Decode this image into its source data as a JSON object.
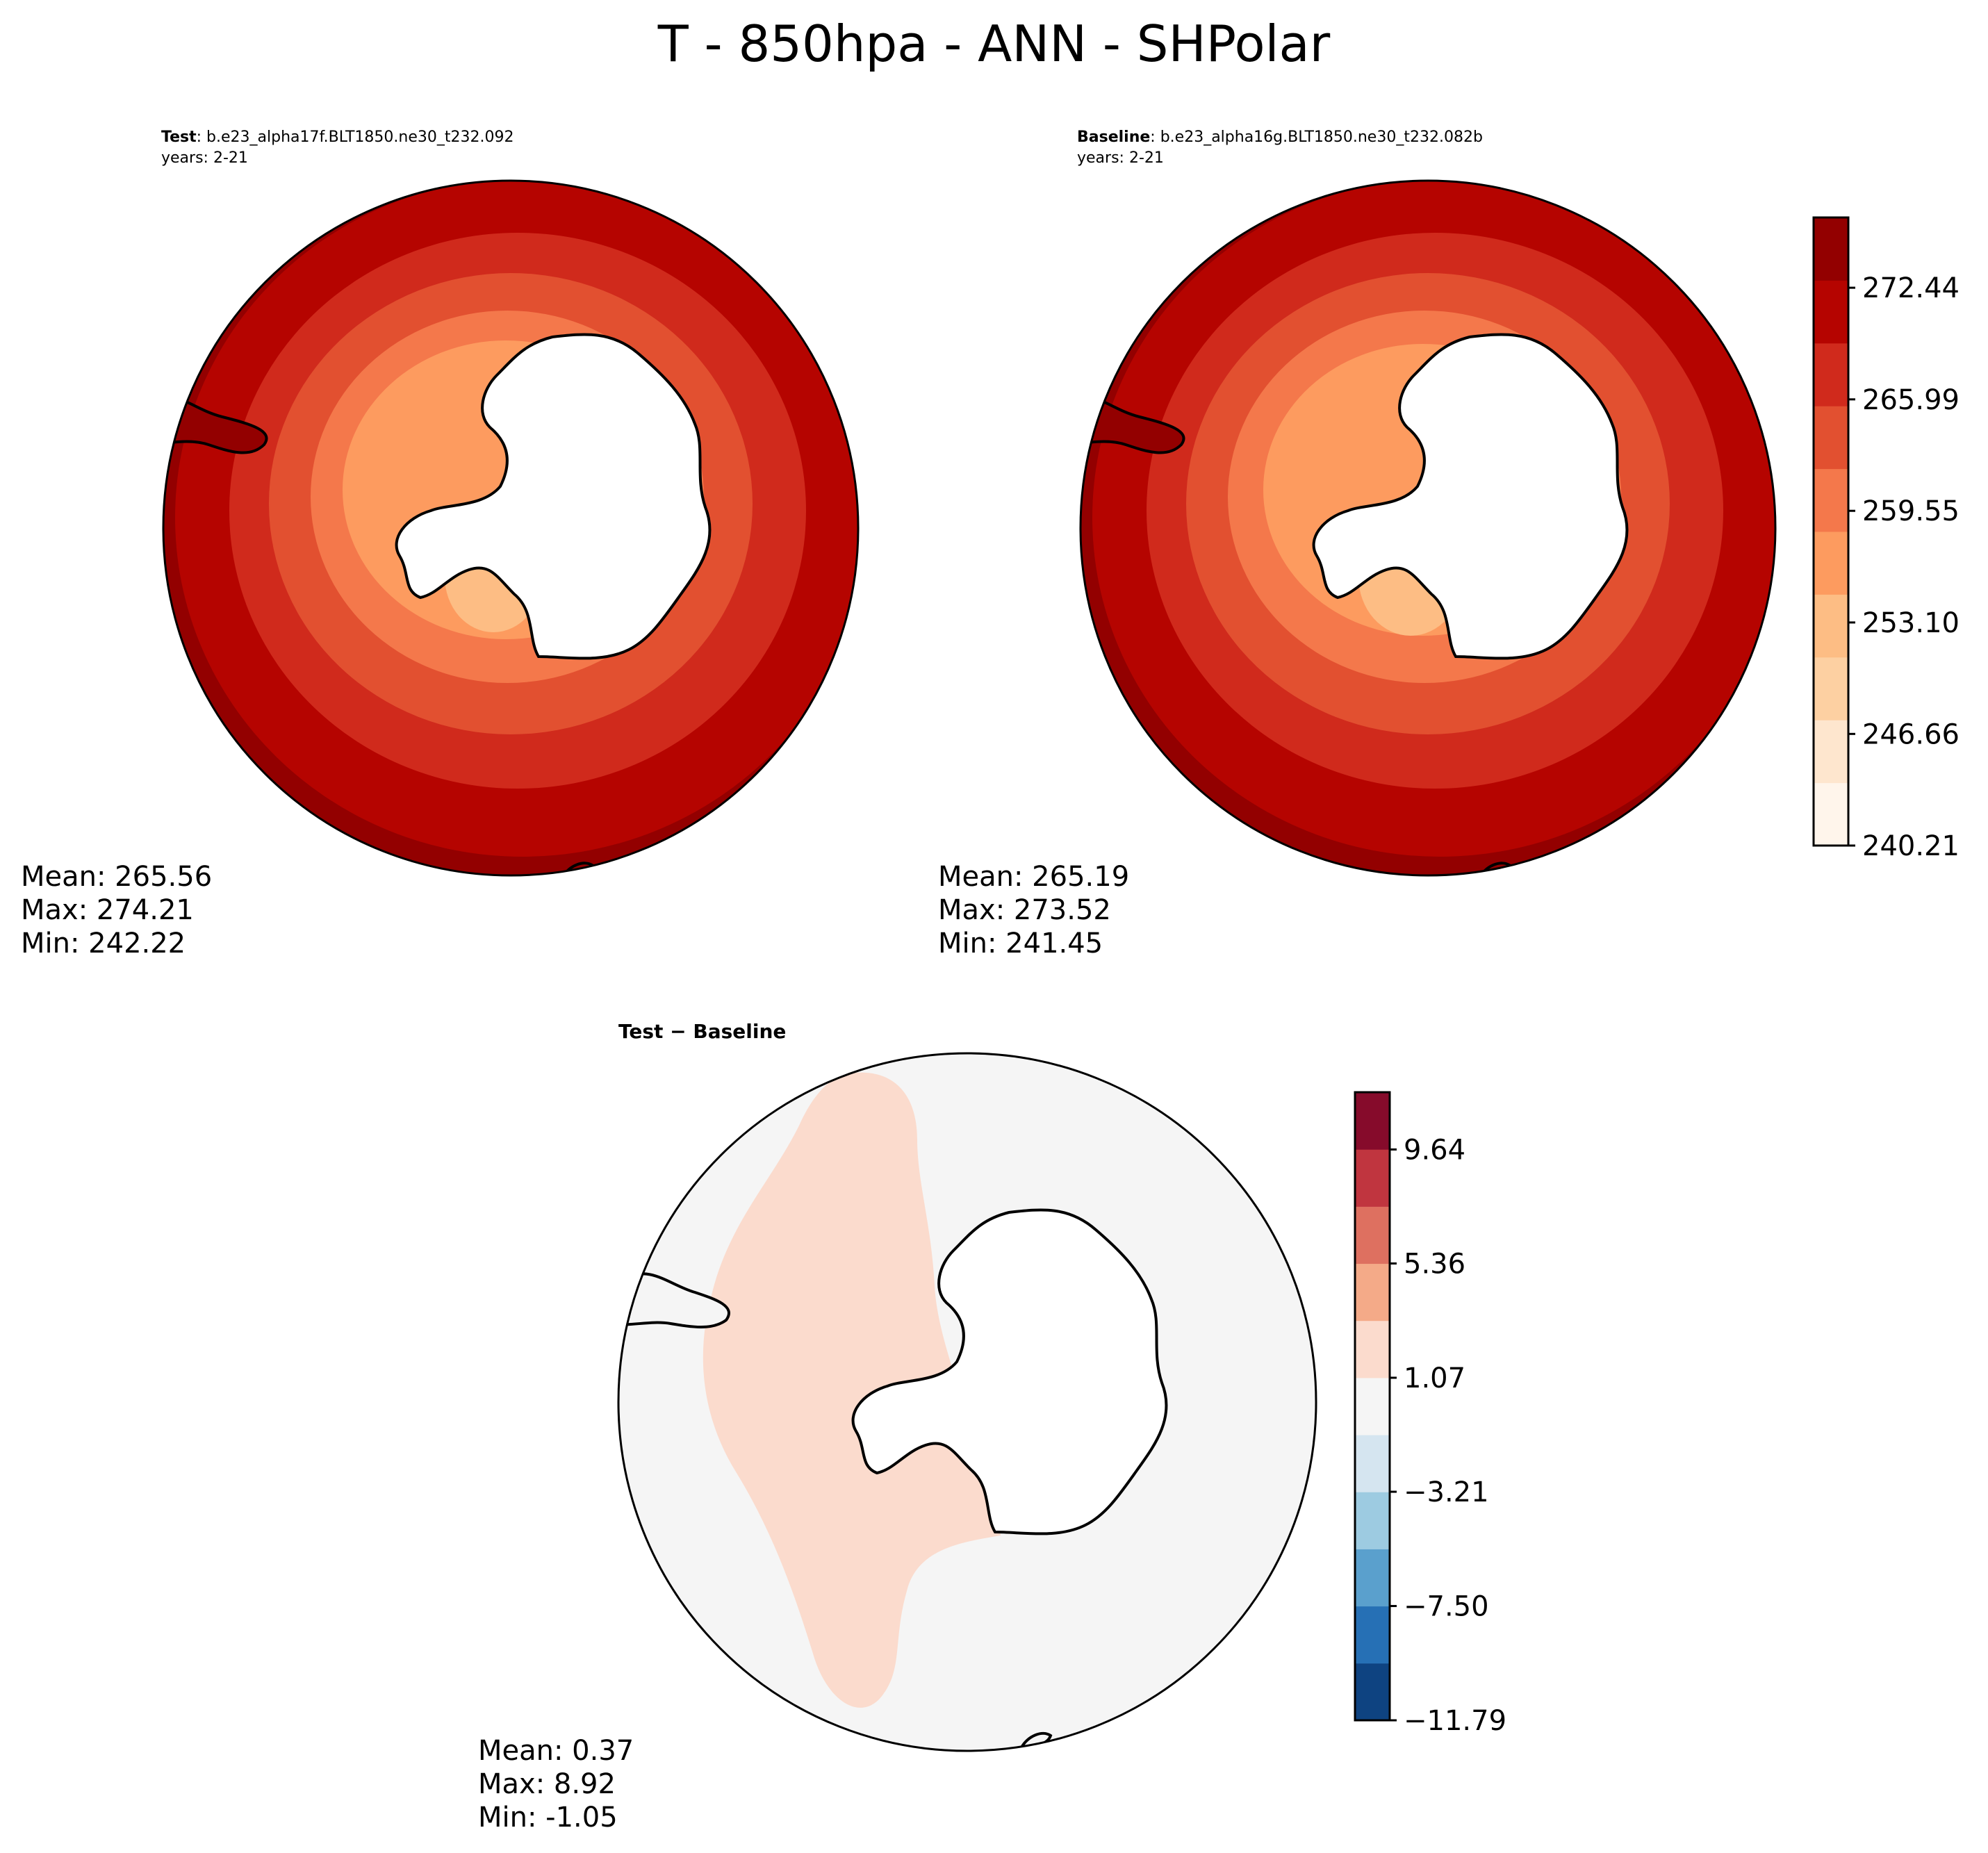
{
  "figure": {
    "title": "T - 850hpa - ANN - SHPolar"
  },
  "panels": {
    "test": {
      "label_bold": "Test",
      "label_rest": ": b.e23_alpha17f.BLT1850.ne30_t232.092",
      "years": "years: 2-21",
      "mean": "Mean: 265.56",
      "max": "Max: 274.21",
      "min": "Min: 242.22"
    },
    "baseline": {
      "label_bold": "Baseline",
      "label_rest": ": b.e23_alpha16g.BLT1850.ne30_t232.082b",
      "years": "years: 2-21",
      "mean": "Mean: 265.19",
      "max": "Max: 273.52",
      "min": "Min: 241.45"
    },
    "diff": {
      "title": "Test − Baseline",
      "mean": "Mean:  0.37",
      "max": "Max:  8.92",
      "min": "Min: -1.05"
    }
  },
  "chart_data": [
    {
      "type": "heatmap",
      "name": "test",
      "projection": "south-polar-stereographic",
      "region": "SHPolar",
      "units": "K",
      "stats": {
        "mean": 265.56,
        "max": 274.21,
        "min": 242.22
      }
    },
    {
      "type": "heatmap",
      "name": "baseline",
      "projection": "south-polar-stereographic",
      "region": "SHPolar",
      "units": "K",
      "stats": {
        "mean": 265.19,
        "max": 273.52,
        "min": 241.45
      }
    },
    {
      "type": "heatmap",
      "name": "difference",
      "projection": "south-polar-stereographic",
      "stats": {
        "mean": 0.37,
        "max": 8.92,
        "min": -1.05
      }
    }
  ],
  "colorbars": {
    "main": {
      "range": [
        240.21,
        276.5
      ],
      "tick_values": [
        240.21,
        246.66,
        253.1,
        259.55,
        265.99,
        272.44
      ],
      "tick_labels": [
        "240.21",
        "246.66",
        "253.10",
        "259.55",
        "265.99",
        "272.44"
      ],
      "colors": [
        "#fff5eb",
        "#fee6ce",
        "#fdd0a2",
        "#fdbd84",
        "#fd9b5f",
        "#f4784b",
        "#e25030",
        "#d02a1c",
        "#b50400",
        "#930000"
      ]
    },
    "diff": {
      "range": [
        -11.79,
        11.79
      ],
      "tick_values": [
        -11.79,
        -7.5,
        -3.21,
        1.07,
        5.36,
        9.64
      ],
      "tick_labels": [
        "−11.79",
        "−7.50",
        "−3.21",
        "1.07",
        "5.36",
        "9.64"
      ],
      "colors": [
        "#0e4381",
        "#2670b5",
        "#5aa0cd",
        "#9dcbe1",
        "#d5e5f0",
        "#f5f5f5",
        "#fbdbcd",
        "#f4aa88",
        "#de7060",
        "#c0353f",
        "#860b2b"
      ]
    }
  }
}
